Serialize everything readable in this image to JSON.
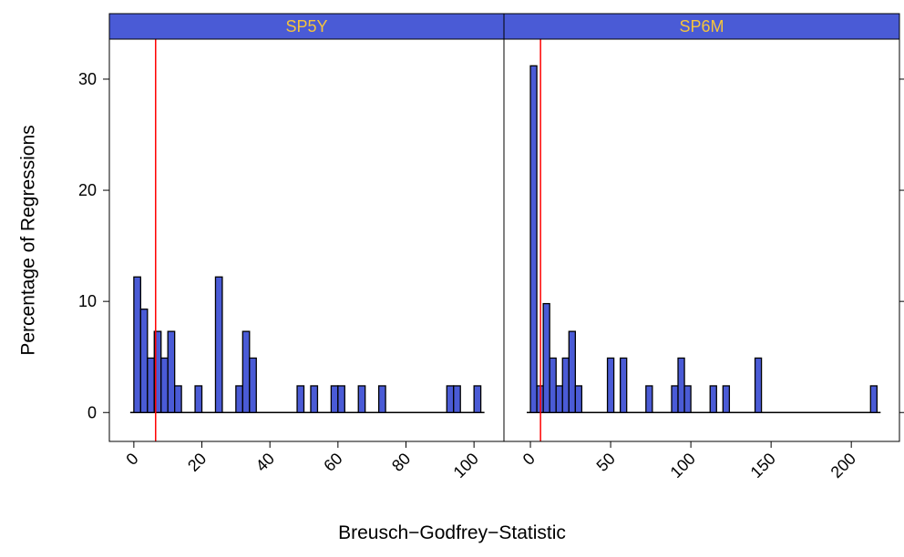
{
  "chart_data": [
    {
      "type": "histogram",
      "title": "SP5Y",
      "color": "#4a5bd6",
      "strip_color": "#4a5bd6",
      "title_color": "#f5c43c",
      "bins": [
        0,
        2,
        4,
        6,
        8,
        10,
        12,
        14,
        16,
        18,
        20,
        22,
        24,
        26,
        28,
        30,
        32,
        34,
        36,
        38,
        40,
        42,
        44,
        46,
        48,
        50,
        52,
        54,
        56,
        58,
        60,
        62,
        64,
        66,
        68,
        70,
        72,
        74,
        76,
        78,
        80,
        82,
        84,
        86,
        88,
        90,
        92,
        94,
        96,
        98,
        100,
        102
      ],
      "values": [
        12.2,
        9.3,
        4.9,
        7.3,
        4.9,
        7.3,
        2.4,
        0,
        0,
        2.4,
        0,
        0,
        12.2,
        0,
        0,
        2.4,
        7.3,
        4.9,
        0,
        0,
        0,
        0,
        0,
        0,
        2.4,
        0,
        2.4,
        0,
        0,
        2.4,
        2.4,
        0,
        0,
        2.4,
        0,
        0,
        2.4,
        0,
        0,
        0,
        0,
        0,
        0,
        0,
        0,
        0,
        2.4,
        2.4,
        0,
        0,
        2.4
      ],
      "xlim": [
        -7.2,
        108.8
      ],
      "xticks": [
        0,
        20,
        40,
        60,
        80,
        100
      ],
      "ylim": [
        -2.6,
        33.6
      ],
      "yticks": [
        0,
        10,
        20,
        30
      ],
      "reference_line": 6.4,
      "reference_color": "#ff0000"
    },
    {
      "type": "histogram",
      "title": "SP6M",
      "color": "#4a5bd6",
      "strip_color": "#4a5bd6",
      "title_color": "#f5c43c",
      "bins": [
        0,
        4,
        8,
        12,
        16,
        20,
        24,
        28,
        32,
        36,
        40,
        44,
        48,
        52,
        56,
        60,
        64,
        68,
        72,
        76,
        80,
        84,
        88,
        92,
        96,
        100,
        104,
        108,
        112,
        116,
        120,
        124,
        128,
        132,
        136,
        140,
        144,
        148,
        152,
        156,
        160,
        164,
        168,
        172,
        176,
        180,
        184,
        188,
        192,
        196,
        200,
        204,
        208,
        212,
        216
      ],
      "values": [
        31.2,
        2.4,
        9.8,
        4.9,
        2.4,
        4.9,
        7.3,
        2.4,
        0,
        0,
        0,
        0,
        4.9,
        0,
        4.9,
        0,
        0,
        0,
        2.4,
        0,
        0,
        0,
        2.4,
        4.9,
        2.4,
        0,
        0,
        0,
        2.4,
        0,
        2.4,
        0,
        0,
        0,
        0,
        4.9,
        0,
        0,
        0,
        0,
        0,
        0,
        0,
        0,
        0,
        0,
        0,
        0,
        0,
        0,
        0,
        0,
        0,
        2.4
      ],
      "xlim": [
        -16.5,
        230
      ],
      "xticks": [
        0,
        50,
        100,
        150,
        200
      ],
      "ylim": [
        -2.6,
        33.6
      ],
      "yticks": [
        0,
        10,
        20,
        30
      ],
      "reference_line": 6.3,
      "reference_color": "#ff0000"
    }
  ],
  "xlabel": "Breusch−Godfrey−Statistic",
  "ylabel": "Percentage of Regressions"
}
